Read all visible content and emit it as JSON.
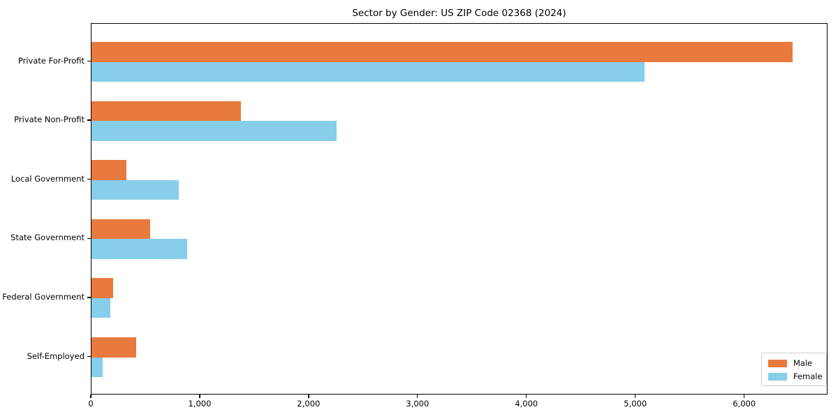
{
  "chart_data": {
    "type": "bar",
    "orientation": "horizontal",
    "title": "Sector by Gender: US ZIP Code 02368 (2024)",
    "categories": [
      "Private For-Profit",
      "Private Non-Profit",
      "Local Government",
      "State Government",
      "Federal Government",
      "Self-Employed"
    ],
    "series": [
      {
        "name": "Male",
        "color": "#E87A3E",
        "values": [
          6440,
          1370,
          320,
          540,
          200,
          410
        ]
      },
      {
        "name": "Female",
        "color": "#87CEEB",
        "values": [
          5080,
          2250,
          800,
          880,
          170,
          100
        ]
      }
    ],
    "xlim": [
      0,
      6765
    ],
    "xticks": [
      0,
      1000,
      2000,
      3000,
      4000,
      5000,
      6000
    ],
    "xtick_labels": [
      "0",
      "1,000",
      "2,000",
      "3,000",
      "4,000",
      "5,000",
      "6,000"
    ],
    "xlabel": "",
    "ylabel": "",
    "grid": false,
    "legend_position": "lower right",
    "axis_color": "#000000",
    "legend_border_color": "#cccccc",
    "background_color": "#ffffff"
  }
}
